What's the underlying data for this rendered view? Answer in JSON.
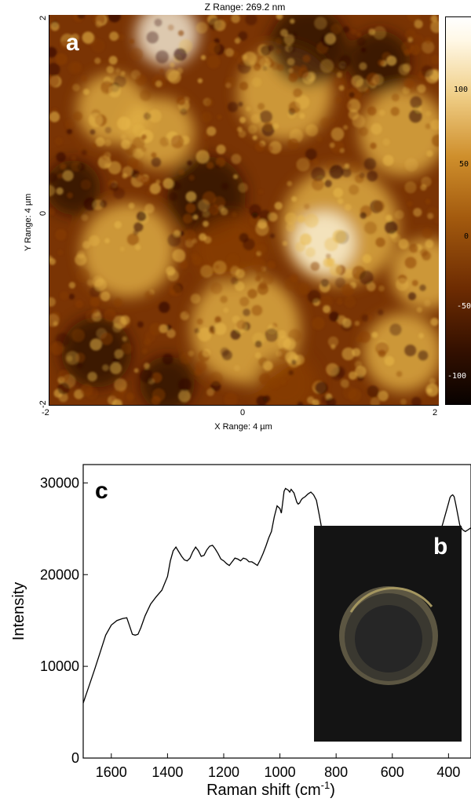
{
  "panel_a": {
    "panel_label": "a",
    "z_range": "Z Range:  269.2 nm",
    "y_range": "Y Range: 4 µm",
    "x_range": "X Range: 4 µm",
    "x_ticks": [
      "-2",
      "0",
      "2"
    ],
    "y_ticks": [
      "2",
      "0",
      "-2"
    ],
    "colorbar_ticks": [
      "100",
      "50",
      "0",
      "-50",
      "-100"
    ],
    "colors": {
      "dark": "#2a0a00",
      "mid": "#8a3e06",
      "bright": "#e8b84a",
      "white": "#fffbe8"
    }
  },
  "panel_b": {
    "panel_label": "b",
    "colors": {
      "background": "#141414",
      "ring": "#8a8058",
      "inner": "#2a2a2a"
    }
  },
  "chart_data": {
    "type": "line",
    "panel_label": "c",
    "xlabel": "Raman shift (cm⁻¹)",
    "xlabel_base": "Raman shift (cm",
    "xlabel_sup": "-1",
    "xlabel_end": ")",
    "ylabel": "Intensity",
    "xlim": [
      1700,
      320
    ],
    "ylim": [
      0,
      32000
    ],
    "x_ticks": [
      1600,
      1400,
      1200,
      1000,
      800,
      600,
      400
    ],
    "y_ticks": [
      0,
      10000,
      20000,
      30000
    ],
    "x_tick_labels": [
      "1600",
      "1400",
      "1200",
      "1000",
      "800",
      "600",
      "400"
    ],
    "y_tick_labels": [
      "0",
      "10000",
      "20000",
      "30000"
    ],
    "series": [
      {
        "x": [
          1700,
          1680,
          1660,
          1640,
          1620,
          1600,
          1580,
          1560,
          1545,
          1535,
          1525,
          1515,
          1505,
          1495,
          1480,
          1460,
          1440,
          1420,
          1400,
          1390,
          1380,
          1370,
          1360,
          1350,
          1340,
          1330,
          1320,
          1310,
          1300,
          1290,
          1280,
          1270,
          1260,
          1250,
          1240,
          1230,
          1220,
          1210,
          1200,
          1190,
          1180,
          1170,
          1160,
          1150,
          1140,
          1130,
          1120,
          1110,
          1100,
          1090,
          1080,
          1070,
          1060,
          1050,
          1040,
          1030,
          1020,
          1010,
          1000,
          995,
          990,
          985,
          980,
          975,
          970,
          965,
          960,
          955,
          950,
          945,
          940,
          935,
          930,
          925,
          920,
          910,
          900,
          890,
          880,
          870,
          860,
          850,
          845,
          840,
          835,
          830,
          820,
          810,
          800,
          790,
          780,
          770,
          760,
          750,
          740,
          730,
          720,
          710,
          700,
          690,
          680,
          670,
          660,
          650,
          640,
          630,
          620,
          610,
          600,
          590,
          580,
          570,
          560,
          550,
          540,
          530,
          525,
          520,
          515,
          510,
          505,
          500,
          495,
          490,
          485,
          480,
          475,
          470,
          460,
          450,
          440,
          430,
          420,
          410,
          400,
          395,
          390,
          385,
          380,
          375,
          370,
          365,
          360,
          350,
          340,
          330,
          320
        ],
        "y": [
          6000,
          7800,
          9600,
          11500,
          13400,
          14500,
          15000,
          15200,
          15300,
          14400,
          13500,
          13400,
          13500,
          14200,
          15500,
          16800,
          17600,
          18300,
          19800,
          21500,
          22600,
          23000,
          22500,
          22000,
          21600,
          21500,
          21800,
          22500,
          23000,
          22600,
          22000,
          22100,
          22700,
          23100,
          23200,
          22800,
          22300,
          21700,
          21500,
          21200,
          21000,
          21400,
          21800,
          21700,
          21500,
          21800,
          21700,
          21400,
          21400,
          21200,
          21000,
          21600,
          22300,
          23100,
          24000,
          24700,
          26300,
          27500,
          27200,
          26700,
          27900,
          29100,
          29400,
          29300,
          29200,
          29000,
          29300,
          29100,
          28900,
          28400,
          27900,
          27700,
          27800,
          28100,
          28300,
          28500,
          28800,
          29000,
          28700,
          28100,
          26500,
          24800,
          24000,
          23800,
          23700,
          23500,
          23400,
          23000,
          22600,
          22400,
          22100,
          21900,
          21700,
          21500,
          21200,
          21000,
          20900,
          20600,
          20400,
          20300,
          20200,
          20400,
          20700,
          20800,
          20700,
          20600,
          20500,
          20400,
          19800,
          19600,
          19700,
          19800,
          20200,
          20500,
          20800,
          21500,
          22000,
          23100,
          23500,
          22500,
          21800,
          22300,
          22600,
          22800,
          22600,
          22200,
          21500,
          21200,
          21500,
          22600,
          23700,
          24600,
          25600,
          26700,
          27800,
          28400,
          28600,
          28700,
          28500,
          27800,
          27000,
          26200,
          25400,
          24900,
          24700,
          24900,
          25100
        ]
      }
    ]
  }
}
